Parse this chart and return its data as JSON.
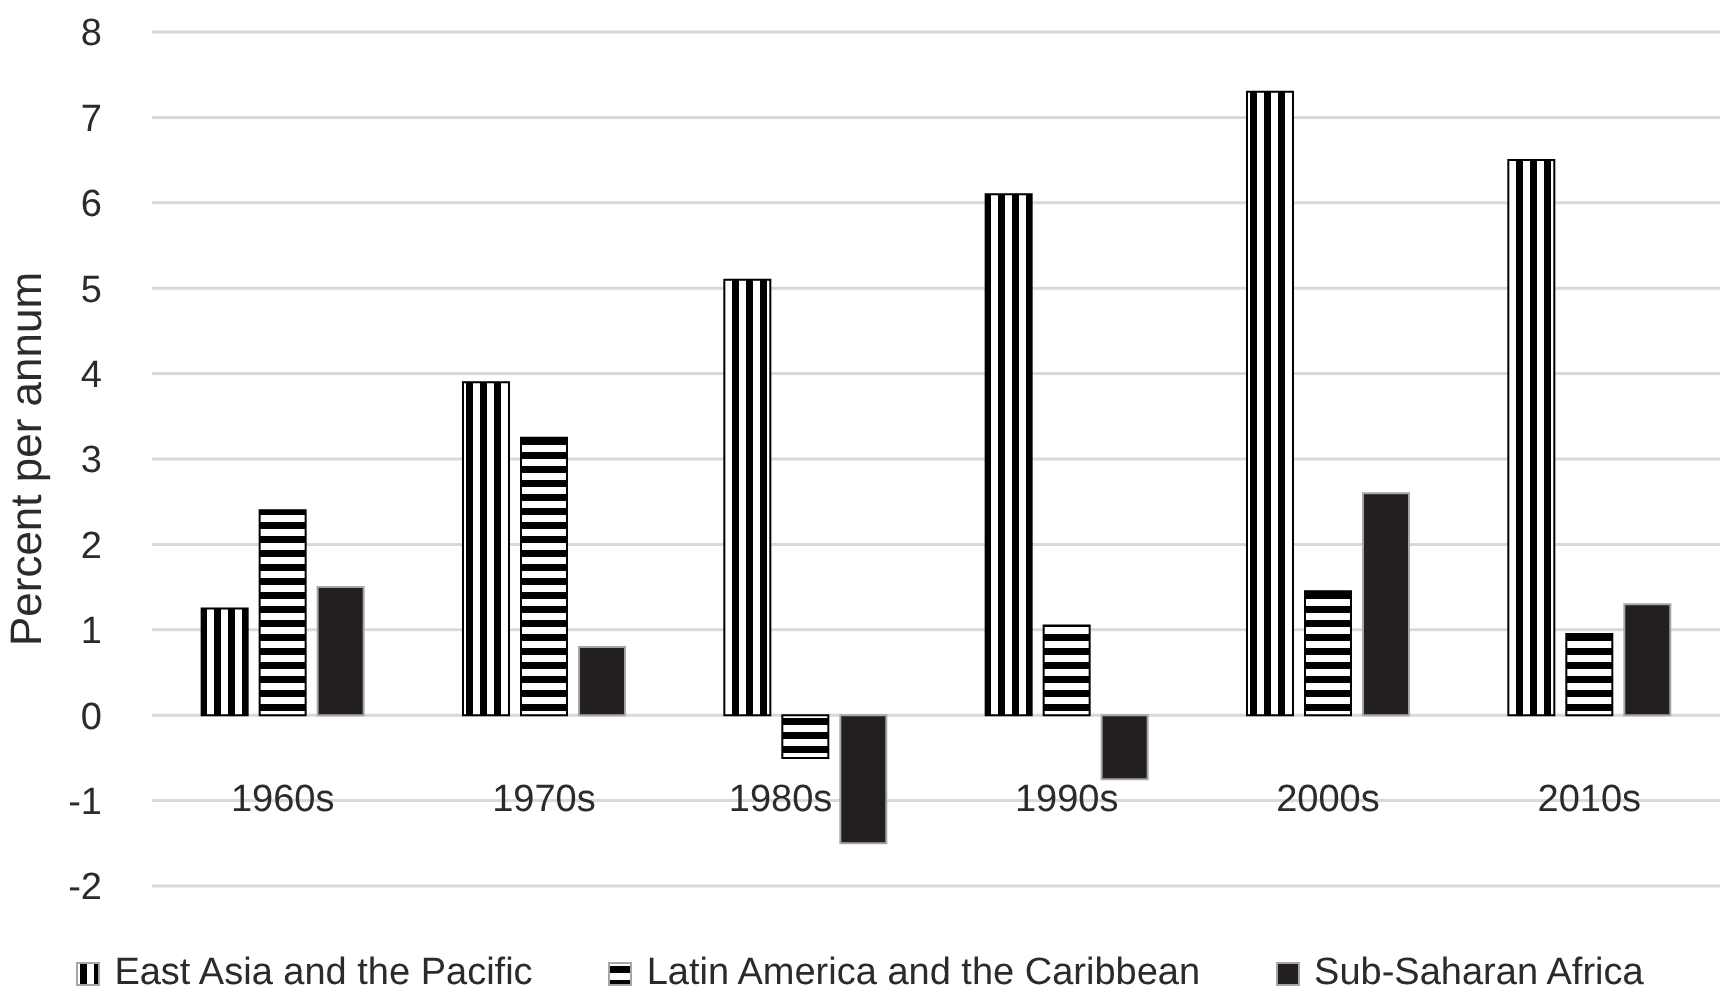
{
  "chart_data": {
    "type": "bar",
    "ylabel": "Percent per annum",
    "categories": [
      "1960s",
      "1970s",
      "1980s",
      "1990s",
      "2000s",
      "2010s"
    ],
    "series": [
      {
        "name": "East Asia and the Pacific",
        "color": "#000000",
        "values": [
          1.25,
          3.9,
          5.1,
          6.1,
          7.3,
          6.5
        ]
      },
      {
        "name": "Latin America and the Caribbean",
        "color": "#000000",
        "values": [
          2.4,
          3.25,
          -0.5,
          1.05,
          1.45,
          0.95
        ]
      },
      {
        "name": "Sub-Saharan Africa",
        "color": "#231f20",
        "values": [
          1.5,
          0.8,
          -1.5,
          -0.75,
          2.6,
          1.3
        ]
      }
    ],
    "ylim": [
      -2,
      8
    ],
    "yticks": [
      -2,
      -1,
      0,
      1,
      2,
      3,
      4,
      5,
      6,
      7,
      8
    ],
    "grid": "y",
    "legend": "bottom"
  }
}
